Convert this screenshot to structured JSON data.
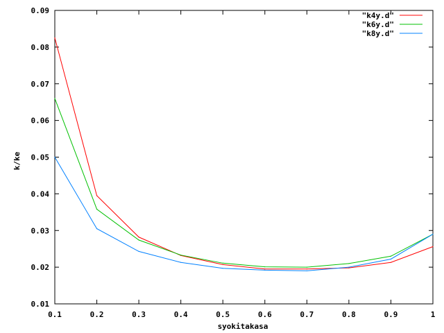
{
  "chart_data": {
    "type": "line",
    "xlabel": "syokitakasa",
    "ylabel": "k/ke",
    "xlim": [
      0.1,
      1.0
    ],
    "ylim": [
      0.01,
      0.09
    ],
    "x_ticks": [
      "0.1",
      "0.2",
      "0.3",
      "0.4",
      "0.5",
      "0.6",
      "0.7",
      "0.8",
      "0.9",
      "1"
    ],
    "y_ticks": [
      "0.01",
      "0.02",
      "0.03",
      "0.04",
      "0.05",
      "0.06",
      "0.07",
      "0.08",
      "0.09"
    ],
    "grid": false,
    "legend_position": "top-right",
    "x": [
      0.1,
      0.2,
      0.3,
      0.4,
      0.5,
      0.6,
      0.7,
      0.8,
      0.9,
      1.0
    ],
    "series": [
      {
        "name": "\"k4y.d\"",
        "color": "#ff0000",
        "values": [
          0.0825,
          0.0395,
          0.0282,
          0.0232,
          0.0207,
          0.0195,
          0.0195,
          0.0198,
          0.0213,
          0.0256
        ]
      },
      {
        "name": "\"k6y.d\"",
        "color": "#00c000",
        "values": [
          0.066,
          0.0358,
          0.0274,
          0.0233,
          0.0211,
          0.0201,
          0.02,
          0.021,
          0.023,
          0.029
        ]
      },
      {
        "name": "\"k8y.d\"",
        "color": "#0080ff",
        "values": [
          0.05,
          0.0305,
          0.0243,
          0.0213,
          0.0197,
          0.0192,
          0.019,
          0.02,
          0.0222,
          0.029
        ]
      }
    ]
  }
}
